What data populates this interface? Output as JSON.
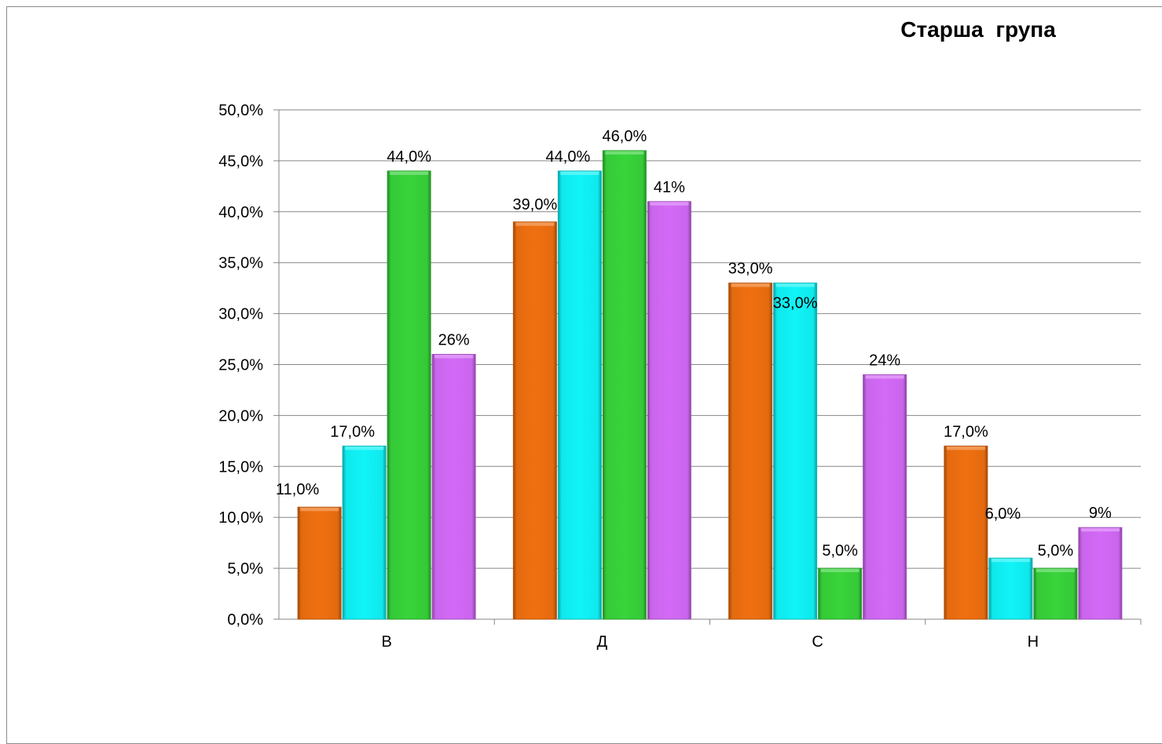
{
  "chart_data": {
    "type": "bar",
    "title": "Старша  група",
    "categories": [
      "В",
      "Д",
      "С",
      "Н"
    ],
    "series": [
      {
        "color": "#f07010",
        "values": [
          11.0,
          39.0,
          33.0,
          17.0
        ],
        "labels": [
          "11,0%",
          "39,0%",
          "33,0%",
          "17,0%"
        ]
      },
      {
        "color": "#10f4f8",
        "values": [
          17.0,
          44.0,
          33.0,
          6.0
        ],
        "labels": [
          "17,0%",
          "44,0%",
          "33,0%",
          "6,0%"
        ]
      },
      {
        "color": "#38d43a",
        "values": [
          44.0,
          46.0,
          5.0,
          5.0
        ],
        "labels": [
          "44,0%",
          "46,0%",
          "5,0%",
          "5,0%"
        ]
      },
      {
        "color": "#d46af8",
        "values": [
          26,
          41,
          24,
          9
        ],
        "labels": [
          "26%",
          "41%",
          "24%",
          "9%"
        ]
      }
    ],
    "ylim": [
      0,
      50
    ],
    "yticks": [
      "0,0%",
      "5,0%",
      "10,0%",
      "15,0%",
      "20,0%",
      "25,0%",
      "30,0%",
      "35,0%",
      "40,0%",
      "45,0%",
      "50,0%"
    ],
    "grid": true,
    "legend": "none"
  }
}
